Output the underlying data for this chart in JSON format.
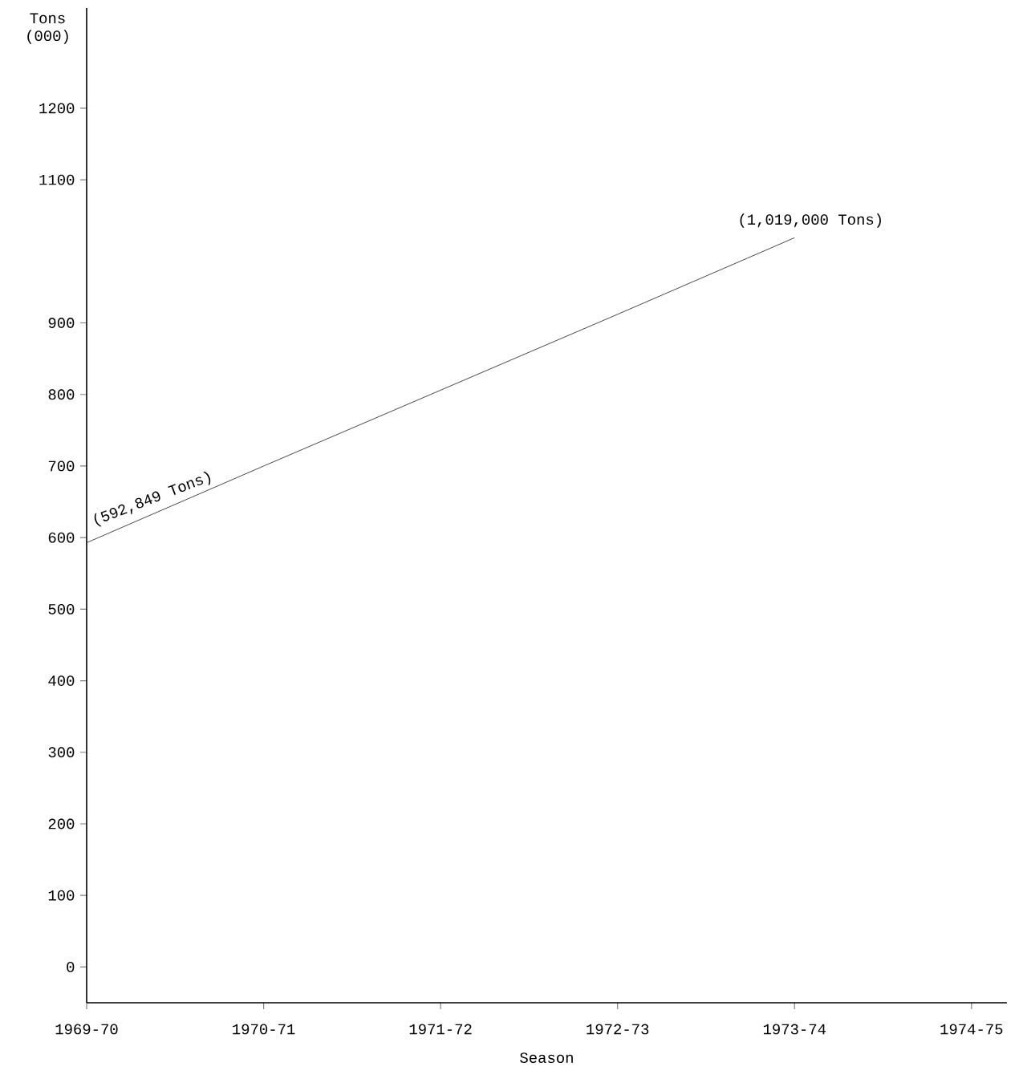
{
  "chart_data": {
    "type": "line",
    "xlabel": "Season",
    "ylabel": "Tons (000)",
    "categories": [
      "1969-70",
      "1970-71",
      "1971-72",
      "1972-73",
      "1973-74",
      "1974-75"
    ],
    "values": [
      592.849,
      700,
      806,
      912,
      1019,
      null
    ],
    "color": "#333333",
    "ylim": [
      -50,
      1340
    ],
    "yticks": [
      0,
      100,
      200,
      300,
      400,
      500,
      600,
      700,
      800,
      900,
      1100,
      1200
    ],
    "annotations": [
      {
        "text": "(592,849 Tons)",
        "x": "1969-70",
        "y": 592.849
      },
      {
        "text": "(1,019,000 Tons)",
        "x": "1973-74",
        "y": 1019
      }
    ]
  }
}
